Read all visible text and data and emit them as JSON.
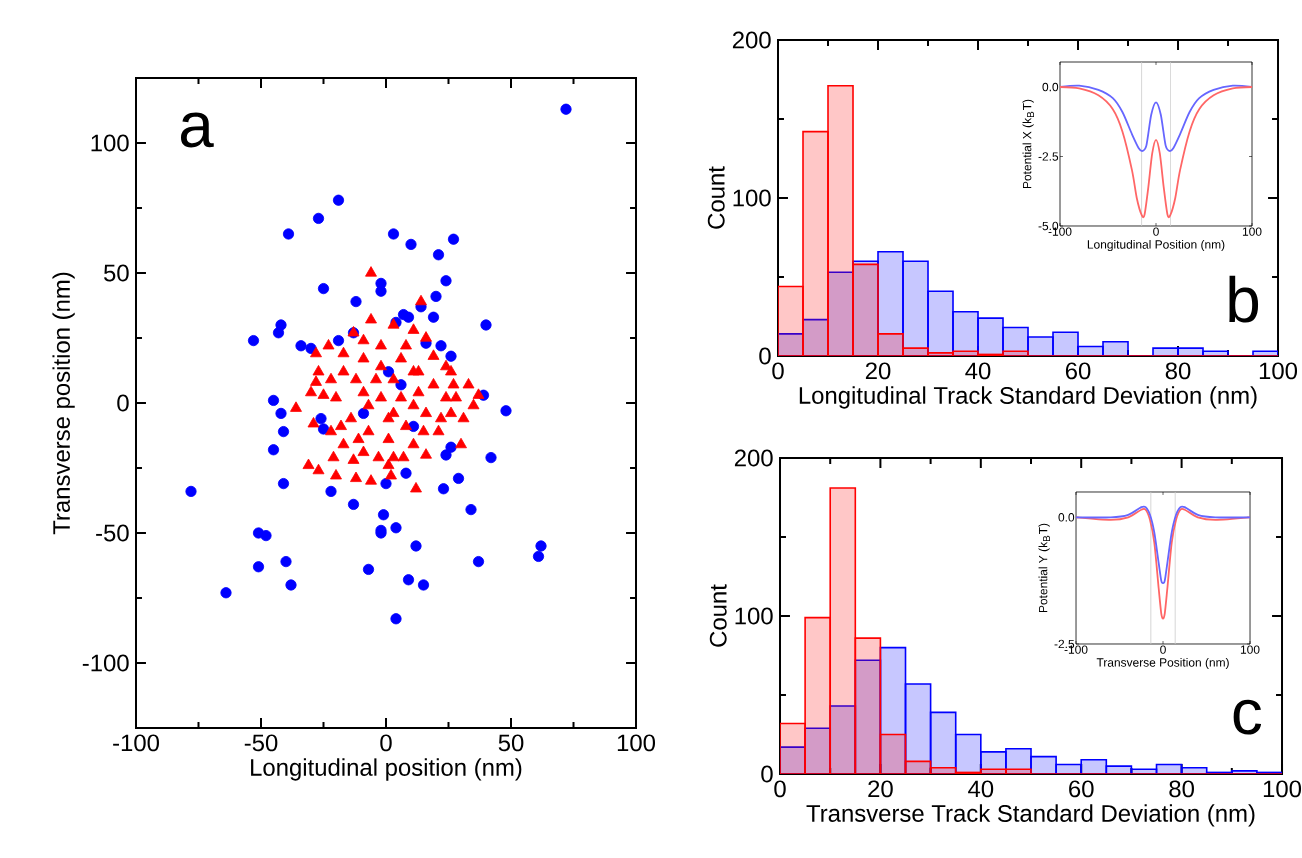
{
  "chart_data": [
    {
      "type": "scatter",
      "xlabel": "Longitudinal position (nm)",
      "ylabel": "Transverse position (nm)",
      "xlim": [
        -100,
        100
      ],
      "ylim": [
        -125,
        125
      ],
      "xticks": [
        -100,
        -50,
        0,
        50,
        100
      ],
      "yticks": [
        -100,
        -50,
        0,
        50,
        100
      ],
      "annotations": [
        "a"
      ],
      "series": [
        {
          "color": "#0000ff",
          "marker": "circle",
          "x": [
            72,
            -19,
            -27,
            -39,
            3,
            10,
            27,
            21,
            24,
            -25,
            -2,
            -2,
            -12,
            20,
            14,
            40,
            -42,
            -43,
            -53,
            -13,
            -34,
            -30,
            -19,
            7,
            9,
            4,
            19,
            16,
            22,
            26,
            -45,
            -42,
            -41,
            -45,
            -41,
            -78,
            -22,
            -13,
            -1,
            -2,
            -2,
            4,
            -51,
            -48,
            -51,
            -40,
            -38,
            -64,
            -7,
            9,
            15,
            4,
            12,
            39,
            48,
            42,
            29,
            34,
            37,
            62,
            61,
            23,
            8,
            0,
            24,
            26,
            -26,
            -25,
            1,
            6,
            -9,
            11
          ],
          "values": [
            113,
            78,
            71,
            65,
            65,
            61,
            63,
            57,
            47,
            44,
            46,
            43,
            39,
            41,
            37,
            30,
            30,
            27,
            24,
            27,
            22,
            21,
            24,
            34,
            33,
            31,
            33,
            23,
            22,
            18,
            1,
            -4,
            -11,
            -18,
            -31,
            -34,
            -34,
            -39,
            -43,
            -49,
            -50,
            -48,
            -50,
            -51,
            -63,
            -61,
            -70,
            -73,
            -64,
            -68,
            -70,
            -83,
            -55,
            3,
            -3,
            -21,
            -29,
            -41,
            -61,
            -55,
            -59,
            -33,
            -27,
            -31,
            -20,
            -17,
            -6,
            -10,
            12,
            7,
            -4,
            -9
          ]
        },
        {
          "color": "#ff0000",
          "marker": "triangle",
          "x": [
            -6,
            14,
            -28,
            -28,
            -36,
            -29,
            -31,
            -27,
            -21,
            -20,
            -12,
            -13,
            -6,
            2,
            12,
            3,
            16,
            30,
            31,
            37,
            33,
            27,
            24,
            19,
            11,
            3,
            -6,
            -13,
            -23,
            -27,
            -25,
            -22,
            -17,
            -9,
            1,
            11,
            21,
            26,
            24,
            19,
            13,
            6,
            -2,
            -9,
            -17,
            -20,
            -14,
            -7,
            1,
            8,
            16,
            13,
            6,
            -2,
            -9,
            -4,
            3,
            11,
            1,
            -7,
            -12,
            11,
            3,
            -2,
            8,
            16,
            -9,
            -17,
            -22,
            -30,
            -18,
            -11,
            -3,
            7,
            15,
            22,
            28,
            35,
            26
          ],
          "values": [
            50,
            39,
            19,
            8,
            -2,
            -8,
            -24,
            -26,
            -21,
            -28,
            -29,
            -22,
            -30,
            -28,
            -33,
            -21,
            -20,
            -16,
            -6,
            3,
            7,
            7,
            14,
            18,
            28,
            30,
            32,
            27,
            22,
            12,
            3,
            -11,
            -16,
            -19,
            -24,
            -16,
            -11,
            -4,
            2,
            7,
            12,
            17,
            22,
            17,
            12,
            2,
            -6,
            -11,
            -14,
            -9,
            -4,
            4,
            2,
            2,
            4,
            9,
            9,
            12,
            -6,
            -1,
            9,
            -1,
            -4,
            14,
            22,
            25,
            24,
            19,
            9,
            4,
            -9,
            -14,
            -21,
            -21,
            -11,
            -6,
            2,
            -1,
            12
          ]
        }
      ]
    },
    {
      "type": "histogram",
      "xlabel": "Longitudinal Track Standard Deviation (nm)",
      "ylabel": "Count",
      "xlim": [
        0,
        100
      ],
      "ylim": [
        0,
        200
      ],
      "xticks": [
        0,
        20,
        40,
        60,
        80,
        100
      ],
      "yticks": [
        0,
        100,
        200
      ],
      "annotations": [
        "b"
      ],
      "bins": [
        0,
        5,
        10,
        15,
        20,
        25,
        30,
        35,
        40,
        45,
        50,
        55,
        60,
        65,
        70,
        75,
        80,
        85,
        90,
        95,
        100
      ],
      "series": [
        {
          "color": "#0000ff",
          "values": [
            14,
            23,
            53,
            60,
            66,
            60,
            41,
            28,
            24,
            18,
            12,
            15,
            6,
            9,
            0,
            5,
            5,
            3,
            0,
            3
          ]
        },
        {
          "color": "#ff0000",
          "values": [
            44,
            142,
            171,
            58,
            14,
            5,
            2,
            3,
            1,
            3,
            0,
            0,
            0,
            0,
            0,
            0,
            0,
            0,
            0,
            0
          ]
        }
      ]
    },
    {
      "type": "line",
      "xlabel": "Longitudinal Position (nm)",
      "ylabel": "Potential X (k$_{B}$T)",
      "xlim": [
        -100,
        100
      ],
      "ylim": [
        -5,
        0.9
      ],
      "xticks": [
        -100,
        0,
        100
      ],
      "yticks": [
        {
          "value": 0,
          "label": "0.0"
        },
        {
          "value": -2.5,
          "label": "-2.5"
        },
        {
          "value": -5,
          "label": "-5.0"
        }
      ],
      "ref_lines": [
        {
          "axis": "x",
          "value": -15,
          "color": "#cccccc"
        },
        {
          "axis": "x",
          "value": 15,
          "color": "#cccccc"
        }
      ],
      "series": [
        {
          "color": "#6666ff",
          "x": [
            -100,
            -80,
            -60,
            -45,
            -35,
            -25,
            -18,
            -14,
            -10,
            -5,
            0,
            5,
            10,
            14,
            18,
            25,
            35,
            45,
            60,
            80,
            100
          ],
          "values": [
            0,
            0.05,
            -0.1,
            -0.4,
            -0.9,
            -1.7,
            -2.2,
            -2.3,
            -2.1,
            -1.0,
            -0.55,
            -1.0,
            -2.1,
            -2.3,
            -2.2,
            -1.7,
            -0.9,
            -0.4,
            -0.1,
            0.05,
            0
          ]
        },
        {
          "color": "#ff6666",
          "x": [
            -100,
            -80,
            -60,
            -45,
            -35,
            -25,
            -20,
            -15,
            -12,
            -8,
            -4,
            0,
            4,
            8,
            12,
            15,
            20,
            25,
            35,
            45,
            60,
            80,
            100
          ],
          "values": [
            0,
            -0.05,
            -0.3,
            -0.8,
            -1.6,
            -3.0,
            -4.0,
            -4.6,
            -4.6,
            -3.6,
            -2.4,
            -1.9,
            -2.4,
            -3.6,
            -4.6,
            -4.6,
            -4.0,
            -3.0,
            -1.6,
            -0.8,
            -0.3,
            -0.05,
            0
          ]
        }
      ]
    },
    {
      "type": "histogram",
      "xlabel": "Transverse Track Standard Deviation (nm)",
      "ylabel": "Count",
      "xlim": [
        0,
        100
      ],
      "ylim": [
        0,
        200
      ],
      "xticks": [
        0,
        20,
        40,
        60,
        80,
        100
      ],
      "yticks": [
        0,
        100,
        200
      ],
      "annotations": [
        "c"
      ],
      "bins": [
        0,
        5,
        10,
        15,
        20,
        25,
        30,
        35,
        40,
        45,
        50,
        55,
        60,
        65,
        70,
        75,
        80,
        85,
        90,
        95,
        100
      ],
      "series": [
        {
          "color": "#0000ff",
          "values": [
            17,
            29,
            43,
            72,
            80,
            57,
            39,
            25,
            14,
            16,
            11,
            6,
            9,
            5,
            3,
            6,
            4,
            1,
            2,
            1
          ]
        },
        {
          "color": "#ff0000",
          "values": [
            32,
            99,
            181,
            86,
            25,
            8,
            4,
            1,
            3,
            3,
            0,
            0,
            0,
            0,
            0,
            0,
            0,
            0,
            0,
            0
          ]
        }
      ]
    },
    {
      "type": "line",
      "xlabel": "Transverse Position (nm)",
      "ylabel": "Potential Y (k$_{B}$T)",
      "xlim": [
        -100,
        100
      ],
      "ylim": [
        -2.5,
        0.5
      ],
      "xticks": [
        -100,
        0,
        100
      ],
      "yticks": [
        {
          "value": 0,
          "label": "0.0"
        },
        {
          "value": -2.5,
          "label": "-2.5"
        }
      ],
      "ref_lines": [
        {
          "axis": "x",
          "value": -14,
          "color": "#cccccc"
        },
        {
          "axis": "x",
          "value": 14,
          "color": "#cccccc"
        }
      ],
      "series": [
        {
          "color": "#ff6666",
          "x": [
            -100,
            -60,
            -40,
            -25,
            -20,
            -15,
            -10,
            -5,
            -2,
            0,
            2,
            5,
            10,
            15,
            20,
            25,
            40,
            60,
            100
          ],
          "values": [
            0,
            -0.05,
            0,
            0.15,
            0.15,
            -0.05,
            -0.5,
            -1.4,
            -1.9,
            -2.0,
            -1.9,
            -1.4,
            -0.5,
            -0.05,
            0.15,
            0.15,
            0,
            -0.05,
            0
          ]
        },
        {
          "color": "#6666ff",
          "x": [
            -100,
            -60,
            -40,
            -25,
            -20,
            -15,
            -10,
            -5,
            -2,
            0,
            2,
            5,
            10,
            15,
            20,
            25,
            40,
            60,
            100
          ],
          "values": [
            0,
            0,
            0.05,
            0.2,
            0.2,
            0.05,
            -0.3,
            -0.9,
            -1.25,
            -1.3,
            -1.25,
            -0.9,
            -0.3,
            0.05,
            0.2,
            0.2,
            0.05,
            0,
            0
          ]
        }
      ]
    }
  ]
}
